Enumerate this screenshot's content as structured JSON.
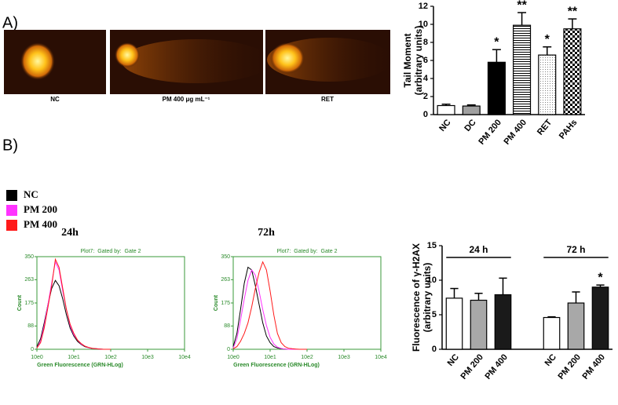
{
  "panel_labels": [
    "A)",
    "B)"
  ],
  "comet_labels": [
    "NC",
    "PM 400 μg mL⁻¹",
    "RET"
  ],
  "chart_data": [
    {
      "type": "bar",
      "y_label": [
        "Tail Moment",
        "(arbitrary units)"
      ],
      "categories": [
        "NC",
        "DC",
        "PM 200",
        "PM 400",
        "RET",
        "PAHs"
      ],
      "values": [
        1.0,
        0.95,
        5.8,
        9.9,
        6.6,
        9.5
      ],
      "errors": [
        0.15,
        0.12,
        1.4,
        1.4,
        0.9,
        1.1
      ],
      "significance": [
        null,
        null,
        "*",
        "**",
        "*",
        "**"
      ],
      "colors": [
        "#ffffff",
        "#a0a0a0",
        "#000000",
        "hlines",
        "dots",
        "checker"
      ],
      "ylim": [
        0,
        12
      ],
      "yticks": [
        0,
        2,
        4,
        6,
        8,
        10,
        12
      ]
    },
    {
      "type": "bar",
      "y_label": [
        "Fluorescence of γ-H2AX",
        "(arbitrary units)"
      ],
      "colors": [
        "#ffffff",
        "#a8a8a8",
        "#1a1a1a"
      ],
      "groups": [
        {
          "label": "24 h",
          "categories": [
            "NC",
            "PM 200",
            "PM 400"
          ],
          "values": [
            7.4,
            7.1,
            7.9
          ],
          "errors": [
            1.4,
            1.0,
            2.4
          ],
          "significance": [
            null,
            null,
            null
          ]
        },
        {
          "label": "72 h",
          "categories": [
            "NC",
            "PM 200",
            "PM 400"
          ],
          "values": [
            4.6,
            6.7,
            9.0
          ],
          "errors": [
            0.1,
            1.6,
            0.3
          ],
          "significance": [
            null,
            null,
            "*"
          ]
        }
      ],
      "ylim": [
        0,
        15
      ],
      "yticks": [
        0,
        5,
        10,
        15
      ]
    },
    {
      "type": "line",
      "panel_title": "24h",
      "title": "Plot7:  Gated by:  Gate 2",
      "x_label": "Green Fluorescence (GRN-HLog)",
      "y_label": "Count",
      "log_x": true,
      "x": [
        1,
        1.26,
        1.58,
        2,
        2.51,
        3.16,
        3.98,
        5.01,
        6.31,
        7.94,
        10,
        12.6,
        15.8,
        20,
        25.1,
        31.6,
        39.8,
        50.1,
        63.1,
        79.4,
        100
      ],
      "series": [
        {
          "name": "NC",
          "color": "#000000",
          "values": [
            10,
            40,
            100,
            170,
            230,
            260,
            240,
            190,
            130,
            80,
            50,
            30,
            18,
            10,
            6,
            3,
            2,
            1,
            0,
            0,
            0
          ]
        },
        {
          "name": "PM 200",
          "color": "#ff33ff",
          "values": [
            5,
            30,
            90,
            170,
            250,
            330,
            300,
            220,
            150,
            90,
            55,
            35,
            20,
            12,
            6,
            3,
            2,
            1,
            0,
            0,
            0
          ]
        },
        {
          "name": "PM 400",
          "color": "#ff1a1a",
          "values": [
            5,
            25,
            80,
            160,
            240,
            340,
            310,
            230,
            150,
            95,
            60,
            35,
            22,
            12,
            7,
            4,
            2,
            1,
            0,
            0,
            0
          ]
        }
      ],
      "xlim": [
        1,
        10000
      ],
      "xticks": [
        {
          "value": 1,
          "label": "10e0"
        },
        {
          "value": 10,
          "label": "10e1"
        },
        {
          "value": 100,
          "label": "10e2"
        },
        {
          "value": 1000,
          "label": "10e3"
        },
        {
          "value": 10000,
          "label": "10e4"
        }
      ],
      "ylim": [
        0,
        350
      ],
      "yticks": [
        0,
        88,
        175,
        263,
        350
      ]
    },
    {
      "type": "line",
      "panel_title": "72h",
      "title": "Plot7:  Gated by:  Gate 2",
      "x_label": "Green Fluorescence (GRN-HLog)",
      "y_label": "Count",
      "log_x": true,
      "x": [
        1,
        1.26,
        1.58,
        2,
        2.51,
        3.16,
        3.98,
        5.01,
        6.31,
        7.94,
        10,
        12.6,
        15.8,
        20,
        25.1,
        31.6,
        39.8,
        50.1,
        63.1,
        79.4,
        100
      ],
      "series": [
        {
          "color": "#000000",
          "values": [
            10,
            60,
            150,
            250,
            310,
            300,
            240,
            170,
            100,
            50,
            25,
            10,
            5,
            2,
            1,
            0,
            0,
            0,
            0,
            0,
            0
          ]
        },
        {
          "color": "#ff33ff",
          "values": [
            5,
            40,
            110,
            190,
            260,
            300,
            280,
            220,
            150,
            90,
            45,
            20,
            8,
            3,
            1,
            0,
            0,
            0,
            0,
            0,
            0
          ]
        },
        {
          "color": "#ff1a1a",
          "values": [
            2,
            10,
            30,
            60,
            100,
            160,
            230,
            290,
            330,
            300,
            220,
            130,
            60,
            25,
            10,
            4,
            2,
            1,
            0,
            0,
            0
          ]
        }
      ],
      "xlim": [
        1,
        10000
      ],
      "xticks": [
        {
          "value": 1,
          "label": "10e0"
        },
        {
          "value": 10,
          "label": "10e1"
        },
        {
          "value": 100,
          "label": "10e2"
        },
        {
          "value": 1000,
          "label": "10e3"
        },
        {
          "value": 10000,
          "label": "10e4"
        }
      ],
      "ylim": [
        0,
        350
      ],
      "yticks": [
        0,
        88,
        175,
        263,
        350
      ]
    }
  ]
}
